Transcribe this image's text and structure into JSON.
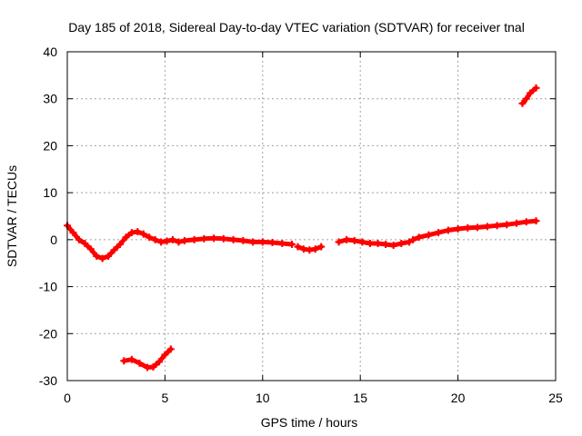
{
  "chart_data": {
    "type": "scatter",
    "title": "Day 185 of 2018, Sidereal Day-to-day VTEC variation (SDTVAR) for receiver tnal",
    "xlabel": "GPS time / hours",
    "ylabel": "SDTVAR / TECUs",
    "xlim": [
      0,
      25
    ],
    "ylim": [
      -30,
      40
    ],
    "grid": true,
    "x_ticks": [
      "0",
      "5",
      "10",
      "15",
      "20",
      "25"
    ],
    "y_ticks": [
      "-30",
      "-20",
      "-10",
      "0",
      "10",
      "20",
      "30",
      "40"
    ],
    "marker_color": "#ff0000",
    "series": [
      {
        "name": "main",
        "points": [
          [
            0,
            3
          ],
          [
            0.3,
            1.5
          ],
          [
            0.6,
            0
          ],
          [
            0.9,
            -0.8
          ],
          [
            1.2,
            -2
          ],
          [
            1.5,
            -3.5
          ],
          [
            1.8,
            -4
          ],
          [
            2.1,
            -3.5
          ],
          [
            2.4,
            -2.2
          ],
          [
            2.7,
            -1
          ],
          [
            3.0,
            0.5
          ],
          [
            3.3,
            1.5
          ],
          [
            3.6,
            1.7
          ],
          [
            3.9,
            1.2
          ],
          [
            4.2,
            0.5
          ],
          [
            4.5,
            0
          ],
          [
            4.8,
            -0.5
          ],
          [
            5.1,
            -0.3
          ],
          [
            5.4,
            0
          ],
          [
            5.7,
            -0.5
          ],
          [
            6.0,
            -0.2
          ],
          [
            6.5,
            0
          ],
          [
            7,
            0.2
          ],
          [
            7.5,
            0.3
          ],
          [
            8,
            0.2
          ],
          [
            8.5,
            0
          ],
          [
            9,
            -0.2
          ],
          [
            9.5,
            -0.5
          ],
          [
            10,
            -0.5
          ],
          [
            10.5,
            -0.6
          ],
          [
            11,
            -0.8
          ],
          [
            11.5,
            -1
          ]
        ]
      },
      {
        "name": "segment-11.8-13",
        "points": [
          [
            11.8,
            -1.5
          ],
          [
            12.1,
            -2
          ],
          [
            12.4,
            -2.2
          ],
          [
            12.7,
            -2
          ],
          [
            13.0,
            -1.5
          ]
        ]
      },
      {
        "name": "segment-13.9-17.5",
        "points": [
          [
            13.9,
            -0.5
          ],
          [
            14.3,
            0
          ],
          [
            14.7,
            -0.2
          ],
          [
            15.1,
            -0.5
          ],
          [
            15.5,
            -0.8
          ],
          [
            15.9,
            -0.8
          ],
          [
            16.3,
            -1
          ],
          [
            16.7,
            -1.2
          ],
          [
            17.1,
            -0.8
          ],
          [
            17.5,
            -0.5
          ]
        ]
      },
      {
        "name": "segment-17.7-24",
        "points": [
          [
            17.7,
            0
          ],
          [
            18,
            0.5
          ],
          [
            18.5,
            1
          ],
          [
            19,
            1.5
          ],
          [
            19.5,
            2
          ],
          [
            20,
            2.3
          ],
          [
            20.5,
            2.5
          ],
          [
            21,
            2.6
          ],
          [
            21.5,
            2.8
          ],
          [
            22,
            3
          ],
          [
            22.5,
            3.2
          ],
          [
            23,
            3.5
          ],
          [
            23.5,
            3.8
          ],
          [
            24,
            4
          ]
        ]
      },
      {
        "name": "segment-upper-right",
        "points": [
          [
            23.3,
            29
          ],
          [
            23.5,
            30
          ],
          [
            23.7,
            31.2
          ],
          [
            24.0,
            32.3
          ]
        ]
      },
      {
        "name": "segment-lower",
        "points": [
          [
            2.9,
            -25.8
          ],
          [
            3.3,
            -25.5
          ],
          [
            3.7,
            -26.3
          ],
          [
            4.1,
            -27.2
          ],
          [
            4.4,
            -27.1
          ],
          [
            4.7,
            -26
          ],
          [
            5.0,
            -24.5
          ],
          [
            5.3,
            -23.3
          ]
        ]
      }
    ]
  }
}
